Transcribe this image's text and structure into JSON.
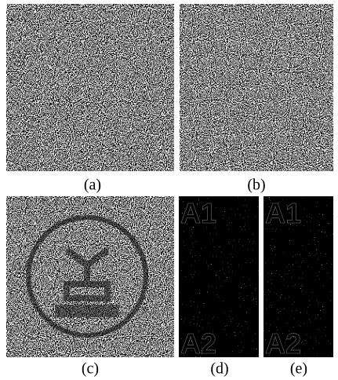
{
  "figure": {
    "panels": [
      {
        "label": "(a)"
      },
      {
        "label": "(b)"
      },
      {
        "label": "(c)"
      },
      {
        "label": "(d)",
        "overlay_text": [
          "A1",
          "A2"
        ]
      },
      {
        "label": "(e)",
        "overlay_text": [
          "A1",
          "A2"
        ]
      }
    ]
  }
}
